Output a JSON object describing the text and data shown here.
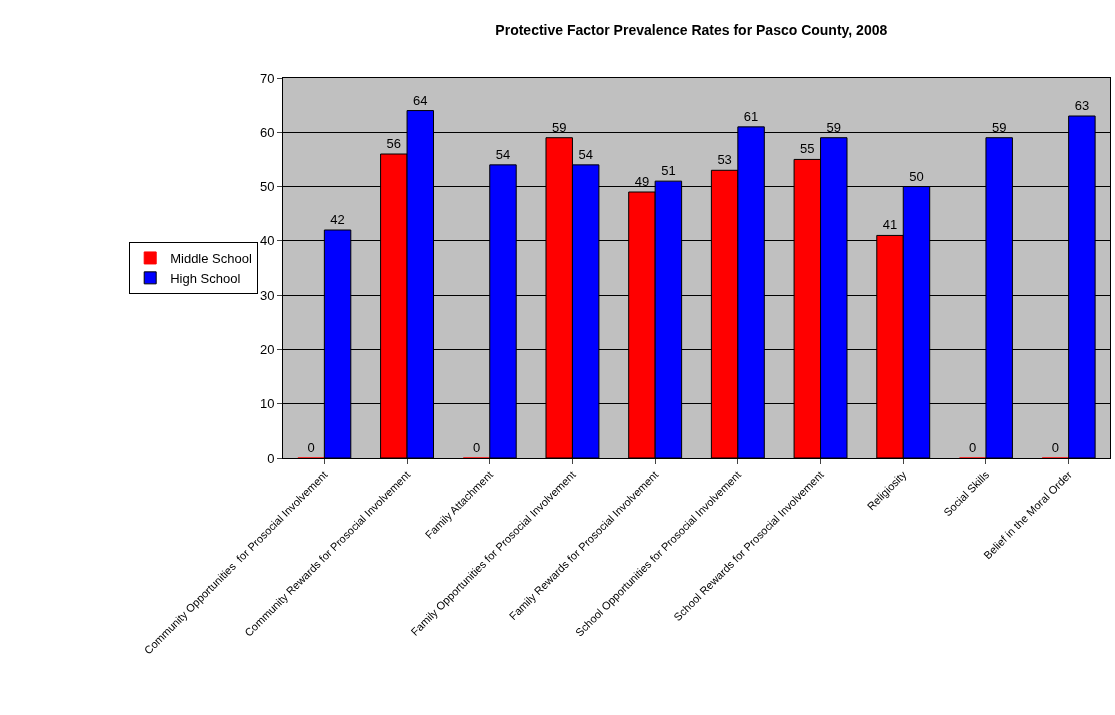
{
  "chart_data": {
    "type": "bar",
    "title": "Protective Factor Prevalence Rates for Pasco County, 2008",
    "categories": [
      "Community Opportunities  for Prosocial Involvement",
      "Community Rewards for Prosocial Involvement",
      "Family Attachment",
      "Family Opportunities for Prosocial Involvement",
      "Family Rewards for Prosocial Involvement",
      "School Opportunities for Prosocial Involvement",
      "School Rewards for Prosocial Involvement",
      "Religiosity",
      "Social Skills",
      "Belief in the Moral Order"
    ],
    "series": [
      {
        "name": "Middle School",
        "color": "#ff0000",
        "values": [
          0,
          56,
          0,
          59,
          49,
          53,
          55,
          41,
          0,
          0
        ]
      },
      {
        "name": "High School",
        "color": "#0000ff",
        "values": [
          42,
          64,
          54,
          54,
          51,
          61,
          59,
          50,
          59,
          63
        ]
      }
    ],
    "ylim": [
      0,
      70
    ],
    "yticks": [
      0,
      10,
      20,
      30,
      40,
      50,
      60,
      70
    ],
    "grid": "y",
    "legend": "left",
    "data_labels": true
  }
}
